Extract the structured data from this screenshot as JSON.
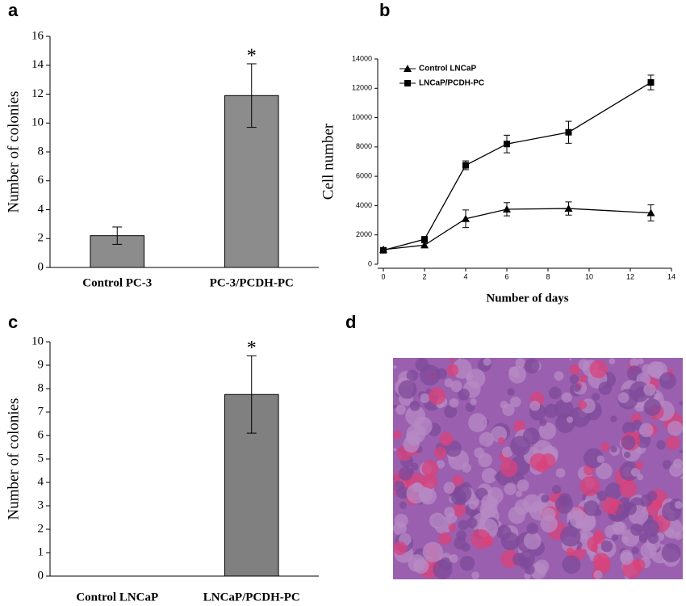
{
  "chart_data": [
    {
      "type": "bar",
      "panel": "a",
      "ylabel": "Number of colonies",
      "categories": [
        "Control PC-3",
        "PC-3/PCDH-PC"
      ],
      "values": [
        2.2,
        11.9
      ],
      "errors": [
        0.6,
        2.2
      ],
      "color": "#8c8c8c",
      "annotation": "*",
      "ylim": [
        0,
        16
      ],
      "yticks": [
        0,
        2,
        4,
        6,
        8,
        10,
        12,
        14,
        16
      ]
    },
    {
      "type": "line",
      "panel": "b",
      "xlabel": "Number of days",
      "ylabel": "Cell number",
      "x": [
        0,
        2,
        4,
        6,
        9,
        13
      ],
      "series": [
        {
          "name": "Control LNCaP",
          "color": "#000000",
          "marker": "triangle",
          "values": [
            1000,
            1300,
            3100,
            3750,
            3800,
            3500
          ],
          "errors": [
            100,
            150,
            600,
            450,
            450,
            550
          ]
        },
        {
          "name": "LNCaP/PCDH-PC",
          "color": "#000000",
          "marker": "square",
          "values": [
            950,
            1700,
            6750,
            8200,
            9000,
            12400
          ],
          "errors": [
            100,
            150,
            300,
            600,
            750,
            500
          ]
        }
      ],
      "xlim": [
        0,
        14
      ],
      "xticks": [
        0,
        2,
        4,
        6,
        8,
        10,
        12,
        14
      ],
      "ylim": [
        0,
        14000
      ],
      "yticks": [
        0,
        2000,
        4000,
        6000,
        8000,
        10000,
        12000,
        14000
      ]
    },
    {
      "type": "bar",
      "panel": "c",
      "ylabel": "Number of colonies",
      "categories": [
        "Control  LNCaP",
        "LNCaP/PCDH-PC"
      ],
      "values": [
        0,
        7.75
      ],
      "errors": [
        0,
        1.65
      ],
      "color": "#808080",
      "annotation": "*",
      "ylim": [
        0,
        10
      ],
      "yticks": [
        0,
        1,
        2,
        3,
        4,
        5,
        6,
        7,
        8,
        9,
        10
      ]
    },
    {
      "type": "image",
      "panel": "d"
    }
  ]
}
